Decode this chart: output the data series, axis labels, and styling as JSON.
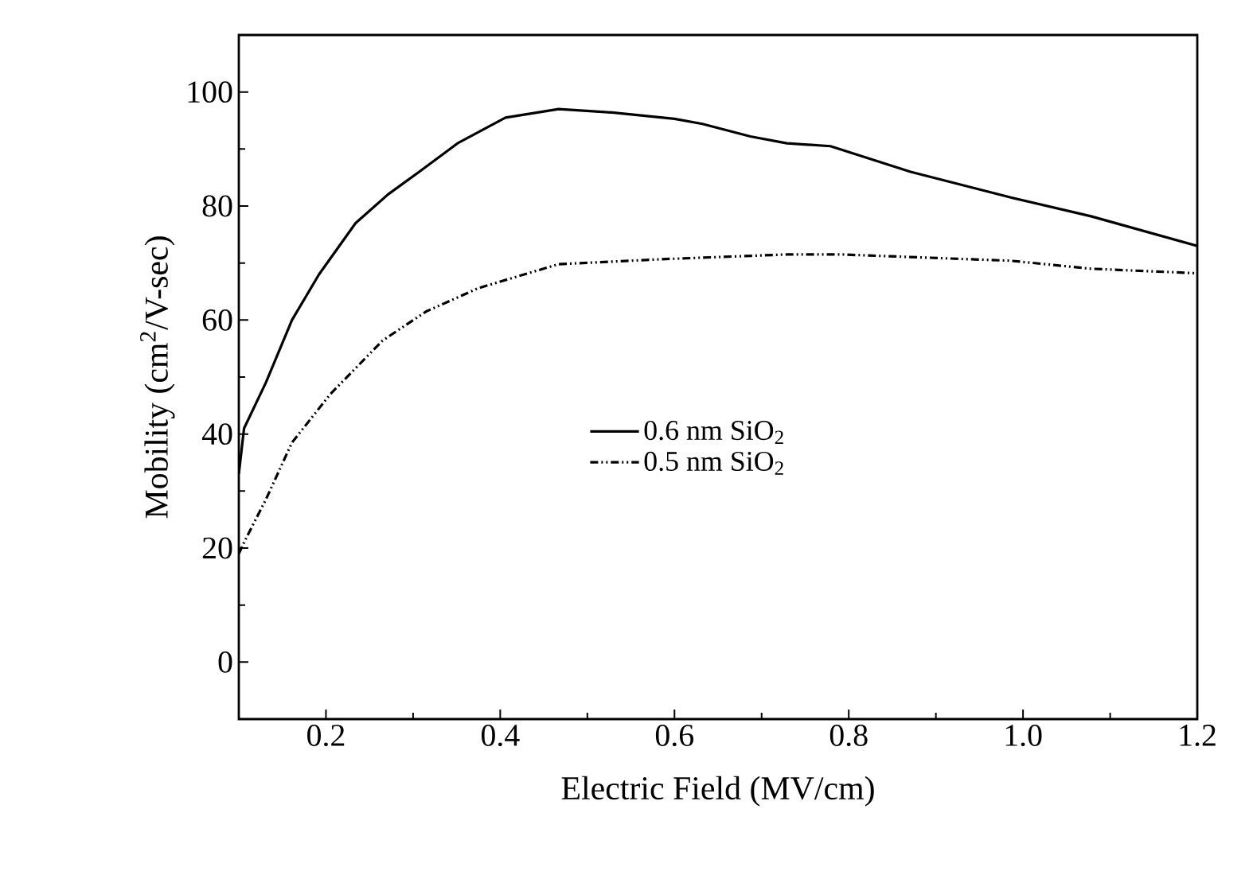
{
  "chart_data": {
    "type": "line",
    "xlabel": "Electric  Field (MV/cm)",
    "ylabel": "Mobility (cm$^{2}$/V-sec)",
    "xlim": [
      0.1,
      1.2
    ],
    "xticks": [
      0.2,
      0.4,
      0.6,
      0.8,
      {
        "value": 1.0,
        "label": "1.0"
      },
      1.2
    ],
    "ylim": [
      -10,
      110
    ],
    "yticks": [
      0,
      20,
      40,
      60,
      80,
      100
    ],
    "grid": false,
    "legend": "right",
    "marker": "none",
    "series": [
      {
        "name": "0.6 nm SiO$_{2}$",
        "color": "#000000",
        "line_style": "solid",
        "x": [
          0.1,
          0.106,
          0.131,
          0.161,
          0.192,
          0.234,
          0.271,
          0.307,
          0.351,
          0.406,
          0.467,
          0.528,
          0.6,
          0.632,
          0.687,
          0.729,
          0.779,
          0.871,
          0.986,
          1.078,
          1.2
        ],
        "values": [
          33,
          41,
          49,
          60,
          68,
          77,
          82,
          86,
          91,
          95.5,
          97,
          96.4,
          95.3,
          94.4,
          92.2,
          91,
          90.5,
          86,
          81.5,
          78.2,
          73
        ]
      },
      {
        "name": "0.5 nm SiO$_{2}$",
        "color": "#000000",
        "line_style": "dashed",
        "x": [
          0.1,
          0.106,
          0.131,
          0.161,
          0.205,
          0.265,
          0.315,
          0.375,
          0.467,
          0.59,
          0.729,
          0.792,
          0.986,
          1.078,
          1.2
        ],
        "values": [
          19,
          21,
          28.5,
          38.5,
          47,
          56.4,
          61.5,
          65.6,
          69.8,
          70.7,
          71.5,
          71.5,
          70.4,
          69,
          68.2
        ]
      }
    ]
  }
}
